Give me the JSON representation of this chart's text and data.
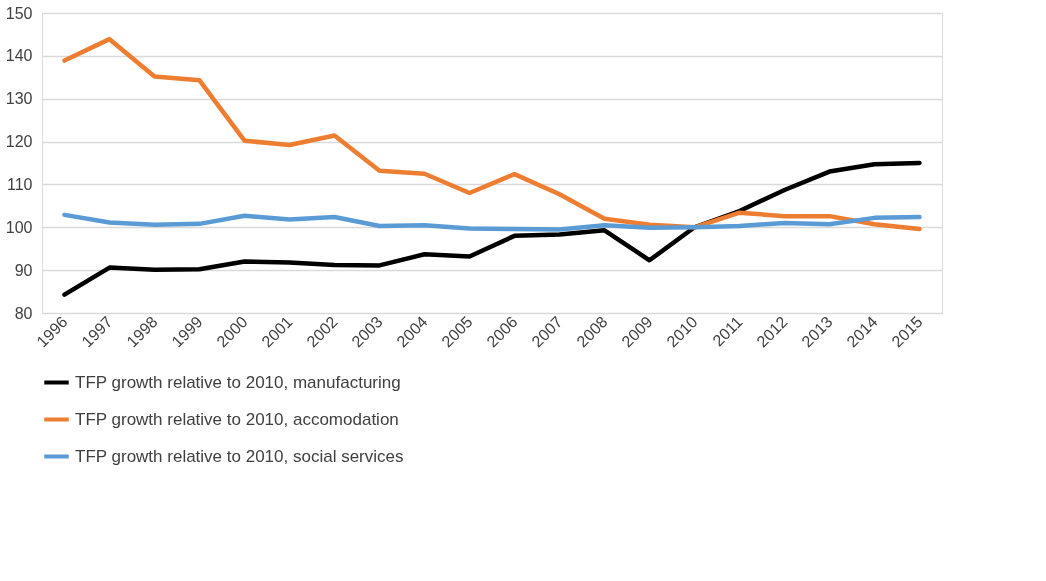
{
  "chart_data": {
    "type": "line",
    "categories": [
      "1996",
      "1997",
      "1998",
      "1999",
      "2000",
      "2001",
      "2002",
      "2003",
      "2004",
      "2005",
      "2006",
      "2007",
      "2008",
      "2009",
      "2010",
      "2011",
      "2012",
      "2013",
      "2014",
      "2015"
    ],
    "series": [
      {
        "name": "TFP growth relative to 2010, manufacturing",
        "color": "#000000",
        "values": [
          84.3,
          90.6,
          90.1,
          90.2,
          92.0,
          91.8,
          91.2,
          91.1,
          93.7,
          93.2,
          98.0,
          98.3,
          99.3,
          92.3,
          100.0,
          103.8,
          108.7,
          113.0,
          114.7,
          115.0
        ]
      },
      {
        "name": "TFP growth relative to 2010, accomodation",
        "color": "#ed7d31",
        "values": [
          138.9,
          143.9,
          135.2,
          134.3,
          120.2,
          119.2,
          121.4,
          113.2,
          112.5,
          108.0,
          112.4,
          107.7,
          102.0,
          100.6,
          100.0,
          103.4,
          102.6,
          102.6,
          100.7,
          99.6
        ]
      },
      {
        "name": "TFP growth relative to 2010, social services",
        "color": "#5b9bd5",
        "values": [
          102.9,
          101.1,
          100.6,
          100.8,
          102.7,
          101.8,
          102.4,
          100.3,
          100.5,
          99.7,
          99.6,
          99.5,
          100.5,
          99.9,
          100.0,
          100.3,
          101.0,
          100.7,
          102.2,
          102.4
        ]
      }
    ],
    "ylim": [
      80,
      150
    ],
    "yticks": [
      80,
      90,
      100,
      110,
      120,
      130,
      140,
      150
    ],
    "grid": "y",
    "legend": "bottom",
    "marker": "none",
    "line_style": "solid"
  }
}
